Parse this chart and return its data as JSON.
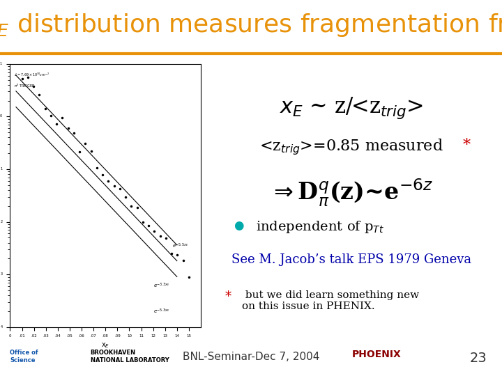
{
  "title": "x$_E$ distribution measures fragmentation fn.",
  "title_color": "#E8920A",
  "title_fontsize": 26,
  "bg_color": "#FFFFFF",
  "header_line_color": "#E8920A",
  "line1": "x$_E$ ~ z/<z$_{trig}$>",
  "line2": "<z$_{trig}$>=0.85 measured*",
  "line2_star_color": "#CC0000",
  "line3": "$\\Rightarrow$D$^q_{\\pi}$(z)~e$^{-6z}$",
  "bullet1": "• independent of p$_{Tt}$",
  "bullet_color": "#00AAAA",
  "ref_line": "See M. Jacob’s talk EPS 1979 Geneva",
  "ref_color": "#0000AA",
  "footnote_star": "*",
  "footnote_star_color": "#CC0000",
  "footnote_text": " but we did learn something new\non this issue in PHENIX.",
  "footer_text": "BNL-Seminar-Dec 7, 2004",
  "footer_page": "23",
  "footer_color": "#333333"
}
